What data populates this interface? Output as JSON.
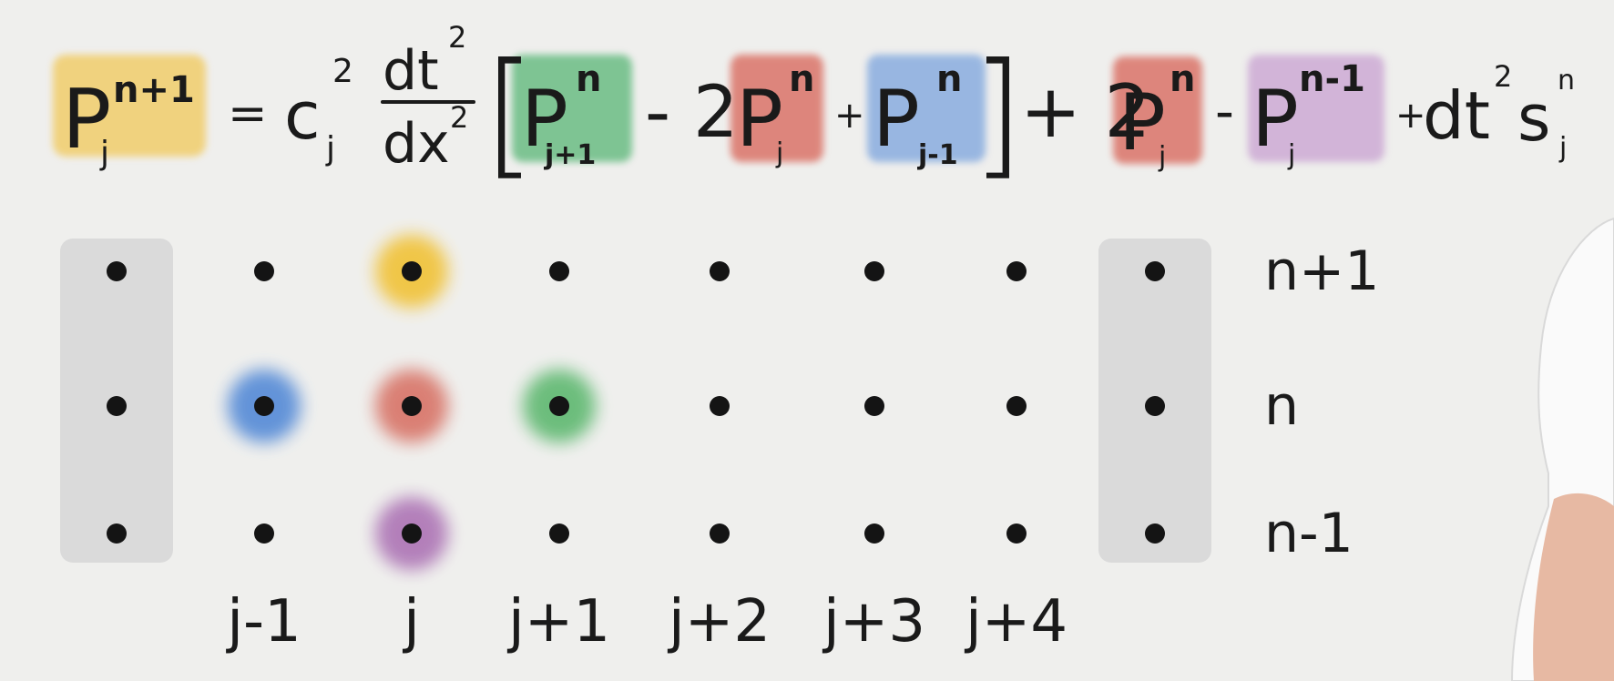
{
  "equation": {
    "lhs": {
      "base": "P",
      "sup": "n+1",
      "sub": "j",
      "highlight": "#f1cf72"
    },
    "equals": "=",
    "coef": {
      "base": "c",
      "sup": "2",
      "sub": "j"
    },
    "fraction": {
      "num": "dt",
      "num_sup": "2",
      "den": "dx",
      "den_sup": "2"
    },
    "bracket_open": "[",
    "bracket_close": "]",
    "t1": {
      "base": "P",
      "sup": "n",
      "sub": "j+1",
      "highlight": "#72c08a"
    },
    "minus2": "- 2",
    "t2": {
      "base": "P",
      "sup": "n",
      "sub": "j",
      "highlight": "#dc7a70"
    },
    "plus1": "+",
    "t3": {
      "base": "P",
      "sup": "n",
      "sub": "j-1",
      "highlight": "#8fb0e0"
    },
    "plus2": "+ 2",
    "t4": {
      "base": "P",
      "sup": "n",
      "sub": "j",
      "highlight": "#dc7a70"
    },
    "minus3": "-",
    "t5": {
      "base": "P",
      "sup": "n-1",
      "sub": "j",
      "highlight": "#cfaed6"
    },
    "plus3": "+",
    "source": {
      "base": "dt",
      "sup": "2",
      "s": "s",
      "s_sup": "n",
      "s_sub": "j"
    }
  },
  "grid": {
    "columns": [
      "",
      "j-1",
      "j",
      "j+1",
      "j+2",
      "j+3",
      "j+4",
      ""
    ],
    "rows": [
      "n+1",
      "n",
      "n-1"
    ],
    "ghost_columns": [
      0,
      7
    ],
    "ghost_color": "#d6d6d6",
    "highlights": [
      {
        "col": 2,
        "row": 0,
        "color": "#f1c441"
      },
      {
        "col": 1,
        "row": 1,
        "color": "#5b8fd8"
      },
      {
        "col": 2,
        "row": 1,
        "color": "#d97a6e"
      },
      {
        "col": 3,
        "row": 1,
        "color": "#66bb77"
      },
      {
        "col": 2,
        "row": 2,
        "color": "#b07ab8"
      }
    ]
  }
}
